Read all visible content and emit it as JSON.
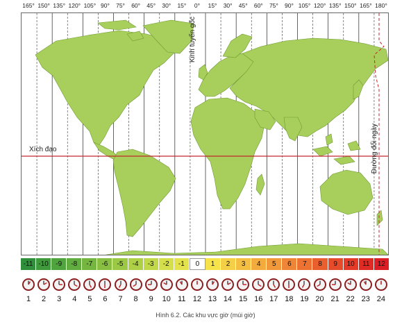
{
  "longitude_labels": [
    "165°",
    "150°",
    "135°",
    "120°",
    "105°",
    "90°",
    "75°",
    "60°",
    "45°",
    "30°",
    "15°",
    "0°",
    "15°",
    "30°",
    "45°",
    "60°",
    "75°",
    "90°",
    "105°",
    "120°",
    "135°",
    "150°",
    "165°",
    "180°"
  ],
  "labels": {
    "equator": "Xích đạo",
    "prime_meridian": "Kinh tuyến gốc",
    "date_line": "Đường đổi ngày"
  },
  "time_zones": [
    "-11",
    "-10",
    "-9",
    "-8",
    "-7",
    "-6",
    "-5",
    "-4",
    "-3",
    "-2",
    "-1",
    "0",
    "1",
    "2",
    "3",
    "4",
    "5",
    "6",
    "7",
    "8",
    "9",
    "10",
    "11",
    "12"
  ],
  "clock_numbers": [
    "1",
    "2",
    "3",
    "4",
    "5",
    "6",
    "7",
    "8",
    "9",
    "10",
    "11",
    "12",
    "13",
    "14",
    "15",
    "16",
    "17",
    "18",
    "19",
    "20",
    "21",
    "22",
    "23",
    "24"
  ],
  "caption": "Hình 6.2. Các khu vực giờ (múi giờ)",
  "colors": {
    "land": "#a8cf5c",
    "ocean": "#ffffff",
    "equator_line": "#c1272d",
    "date_line": "#c1272d",
    "clock_face": "#8b1e1e"
  }
}
